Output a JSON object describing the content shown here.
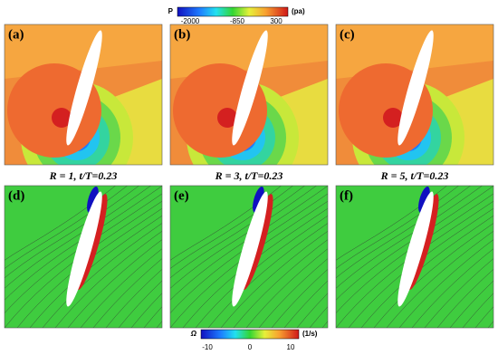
{
  "colorbars": [
    {
      "label": "P",
      "unit": "(pa)",
      "ticks": [
        -2000,
        -850,
        300
      ]
    },
    {
      "label": "Ω",
      "unit": "(1/s)",
      "ticks": [
        -10,
        0,
        10
      ]
    }
  ],
  "panels": [
    {
      "label": "(a)"
    },
    {
      "label": "(b)"
    },
    {
      "label": "(c)"
    },
    {
      "label": "(d)"
    },
    {
      "label": "(e)"
    },
    {
      "label": "(f)"
    }
  ],
  "captions": [
    "R = 1, t/T=0.23",
    "R = 3, t/T=0.23",
    "R = 5, t/T=0.23"
  ]
}
